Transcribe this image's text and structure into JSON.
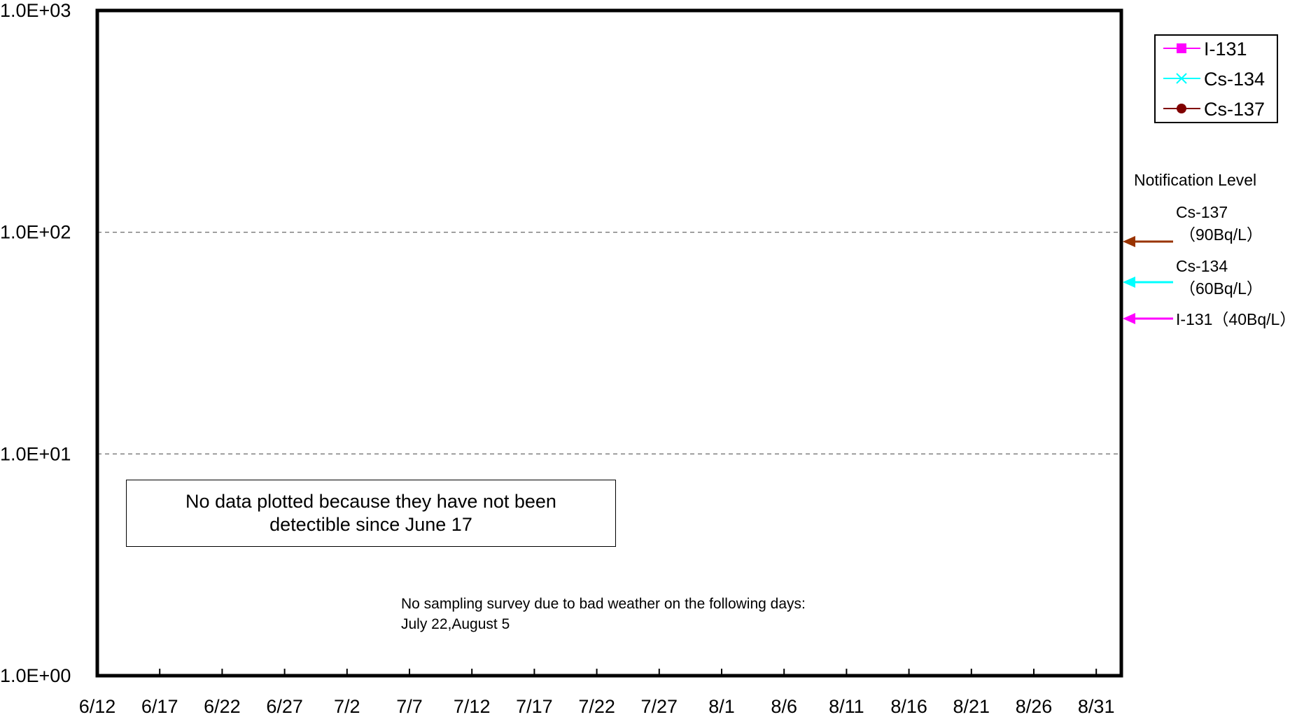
{
  "chart_data": {
    "type": "line",
    "x_ticks": [
      "6/12",
      "6/17",
      "6/22",
      "6/27",
      "7/2",
      "7/7",
      "7/12",
      "7/17",
      "7/22",
      "7/27",
      "8/1",
      "8/6",
      "8/11",
      "8/16",
      "8/21",
      "8/26",
      "8/31"
    ],
    "y_scale": "log",
    "ylim": [
      1,
      1000
    ],
    "y_ticks": [
      "1.0E+00",
      "1.0E+01",
      "1.0E+02",
      "1.0E+03"
    ],
    "y_tick_values": [
      1,
      10,
      100,
      1000
    ],
    "grid": "dashed horizontal at 1.0E+01 and 1.0E+02",
    "series": [
      {
        "name": "I-131",
        "color": "#ff00ff",
        "marker": "square",
        "values": []
      },
      {
        "name": "Cs-134",
        "color": "#00ffff",
        "marker": "x",
        "values": []
      },
      {
        "name": "Cs-137",
        "color": "#800000",
        "marker": "circle",
        "values": []
      }
    ],
    "legend_position": "top-right",
    "notification": {
      "title": "Notification Level",
      "levels": [
        {
          "label_line1": "Cs-137",
          "label_line2": "（90Bq/L）",
          "value": 90,
          "color": "#993300"
        },
        {
          "label_line1": "Cs-134",
          "label_line2": "（60Bq/L）",
          "value": 60,
          "color": "#00ffff"
        },
        {
          "label_line1": "I-131（40Bq/L）",
          "label_line2": "",
          "value": 40,
          "color": "#ff00ff"
        }
      ]
    }
  },
  "notes": {
    "no_data": "No data plotted because they have not been detectible since June 17",
    "survey_line1": "No sampling survey due to bad weather on the following days:",
    "survey_line2": "July 22,August 5"
  }
}
